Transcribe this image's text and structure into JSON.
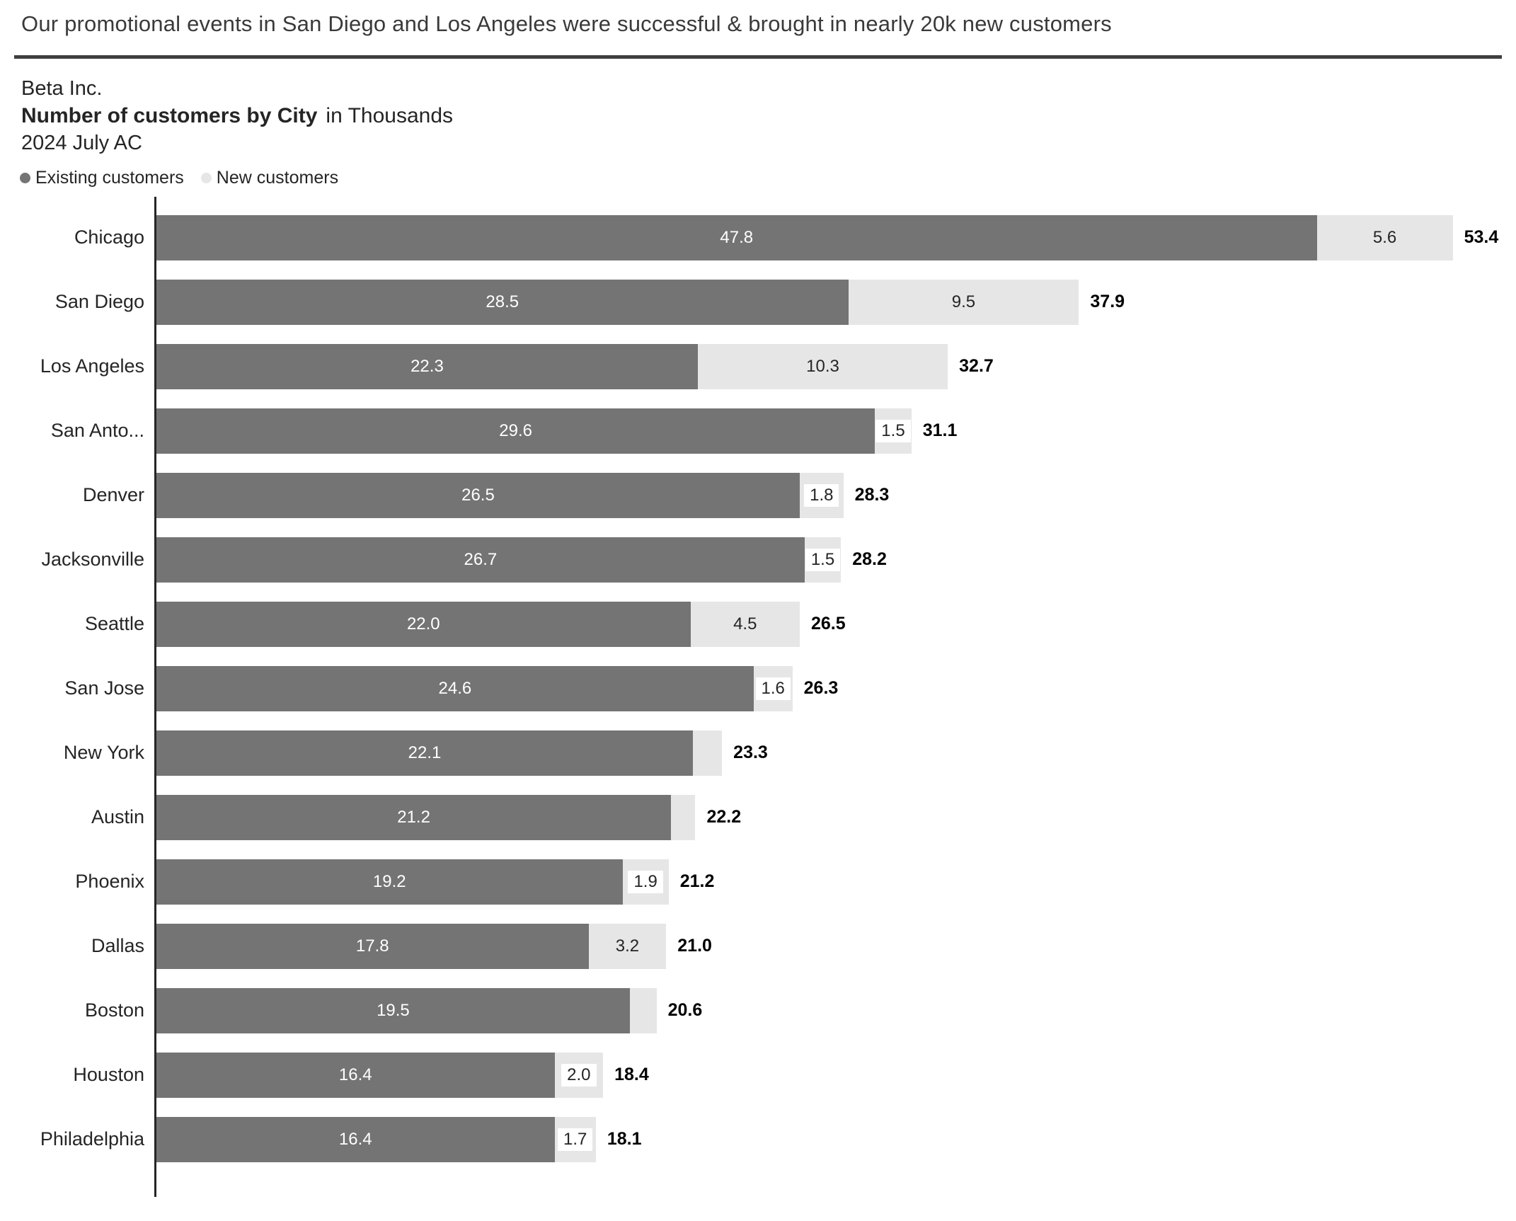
{
  "headline": "Our promotional events in San Diego and Los Angeles were successful & brought in nearly 20k new customers",
  "header": {
    "company": "Beta Inc.",
    "title_bold": "Number of customers by City",
    "title_units": "in Thousands",
    "period": "2024 July AC"
  },
  "legend": {
    "existing": "Existing customers",
    "new": "New customers"
  },
  "colors": {
    "existing_bar": "#747474",
    "new_bar": "#e6e6e6",
    "axis": "#252525",
    "divider": "#3f3f3f",
    "total_label": "#000000",
    "existing_value_text": "#ffffff",
    "new_value_text": "#252525"
  },
  "chart_data": {
    "type": "bar",
    "orientation": "horizontal",
    "stacked": true,
    "title": "Number of customers by City",
    "subtitle": "2024 July AC",
    "units": "in Thousands",
    "legend_position": "top-left",
    "grid": false,
    "x_range": [
      0,
      56
    ],
    "categories": [
      "Chicago",
      "San Diego",
      "Los Angeles",
      "San Anto...",
      "Denver",
      "Jacksonville",
      "Seattle",
      "San Jose",
      "New York",
      "Austin",
      "Phoenix",
      "Dallas",
      "Boston",
      "Houston",
      "Philadelphia"
    ],
    "series": [
      {
        "name": "Existing customers",
        "values": [
          47.8,
          28.5,
          22.3,
          29.6,
          26.5,
          26.7,
          22.0,
          24.6,
          22.1,
          21.2,
          19.2,
          17.8,
          19.5,
          16.4,
          16.4
        ]
      },
      {
        "name": "New customers",
        "values": [
          5.6,
          9.5,
          10.3,
          1.5,
          1.8,
          1.5,
          4.5,
          1.6,
          1.2,
          1.0,
          1.9,
          3.2,
          1.1,
          2.0,
          1.7
        ]
      }
    ],
    "totals": [
      53.4,
      37.9,
      32.7,
      31.1,
      28.3,
      28.2,
      26.5,
      26.3,
      23.3,
      22.2,
      21.2,
      21.0,
      20.6,
      18.4,
      18.1
    ],
    "rows": [
      {
        "category": "Chicago",
        "existing": 47.8,
        "new": 5.6,
        "existing_label": "47.8",
        "new_label": "5.6",
        "new_label_backplate": false,
        "total_label": "53.4"
      },
      {
        "category": "San Diego",
        "existing": 28.5,
        "new": 9.5,
        "existing_label": "28.5",
        "new_label": "9.5",
        "new_label_backplate": false,
        "total_label": "37.9"
      },
      {
        "category": "Los Angeles",
        "existing": 22.3,
        "new": 10.3,
        "existing_label": "22.3",
        "new_label": "10.3",
        "new_label_backplate": false,
        "total_label": "32.7"
      },
      {
        "category": "San Anto...",
        "existing": 29.6,
        "new": 1.5,
        "existing_label": "29.6",
        "new_label": "1.5",
        "new_label_backplate": true,
        "total_label": "31.1"
      },
      {
        "category": "Denver",
        "existing": 26.5,
        "new": 1.8,
        "existing_label": "26.5",
        "new_label": "1.8",
        "new_label_backplate": true,
        "total_label": "28.3"
      },
      {
        "category": "Jacksonville",
        "existing": 26.7,
        "new": 1.5,
        "existing_label": "26.7",
        "new_label": "1.5",
        "new_label_backplate": true,
        "total_label": "28.2"
      },
      {
        "category": "Seattle",
        "existing": 22.0,
        "new": 4.5,
        "existing_label": "22.0",
        "new_label": "4.5",
        "new_label_backplate": false,
        "total_label": "26.5"
      },
      {
        "category": "San Jose",
        "existing": 24.6,
        "new": 1.6,
        "existing_label": "24.6",
        "new_label": "1.6",
        "new_label_backplate": true,
        "total_label": "26.3"
      },
      {
        "category": "New York",
        "existing": 22.1,
        "new": 1.2,
        "existing_label": "22.1",
        "new_label": "",
        "new_label_backplate": false,
        "total_label": "23.3"
      },
      {
        "category": "Austin",
        "existing": 21.2,
        "new": 1.0,
        "existing_label": "21.2",
        "new_label": "",
        "new_label_backplate": false,
        "total_label": "22.2"
      },
      {
        "category": "Phoenix",
        "existing": 19.2,
        "new": 1.9,
        "existing_label": "19.2",
        "new_label": "1.9",
        "new_label_backplate": true,
        "total_label": "21.2"
      },
      {
        "category": "Dallas",
        "existing": 17.8,
        "new": 3.2,
        "existing_label": "17.8",
        "new_label": "3.2",
        "new_label_backplate": false,
        "total_label": "21.0"
      },
      {
        "category": "Boston",
        "existing": 19.5,
        "new": 1.1,
        "existing_label": "19.5",
        "new_label": "",
        "new_label_backplate": false,
        "total_label": "20.6"
      },
      {
        "category": "Houston",
        "existing": 16.4,
        "new": 2.0,
        "existing_label": "16.4",
        "new_label": "2.0",
        "new_label_backplate": true,
        "total_label": "18.4"
      },
      {
        "category": "Philadelphia",
        "existing": 16.4,
        "new": 1.7,
        "existing_label": "16.4",
        "new_label": "1.7",
        "new_label_backplate": true,
        "total_label": "18.1"
      }
    ]
  }
}
